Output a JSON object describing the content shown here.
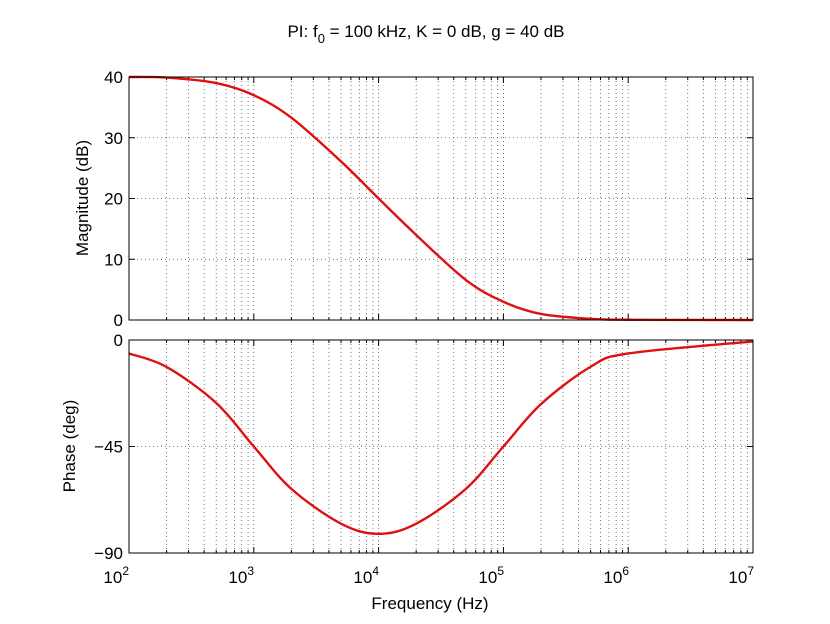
{
  "chart_data": [
    {
      "type": "line",
      "title_prefix": "PI: f",
      "title_subscript": "0",
      "title_suffix": " = 100 kHz, K = 0 dB, g = 40 dB",
      "xlabel": "",
      "ylabel": "Magnitude (dB)",
      "xscale": "log",
      "xlim": [
        100,
        10000000
      ],
      "ylim": [
        0,
        40
      ],
      "yticks": [
        0,
        10,
        20,
        30,
        40
      ],
      "ytick_labels": [
        "0",
        "10",
        "20",
        "30",
        "40"
      ],
      "grid": "dotted",
      "series": [
        {
          "name": "magnitude",
          "color": "#e01010",
          "x": [
            100,
            200,
            500,
            1000,
            2000,
            5000,
            10000,
            20000,
            50000,
            100000,
            200000,
            500000,
            1000000,
            10000000
          ],
          "y": [
            40,
            39.9,
            39.0,
            37.0,
            33.3,
            26.1,
            20.0,
            14.0,
            6.6,
            3.0,
            1.0,
            0.2,
            0.04,
            0
          ]
        }
      ]
    },
    {
      "type": "line",
      "xlabel": "Frequency  (Hz)",
      "ylabel": "Phase (deg)",
      "xscale": "log",
      "xlim": [
        100,
        10000000
      ],
      "ylim": [
        -90,
        0
      ],
      "yticks": [
        0,
        -45,
        -90
      ],
      "ytick_labels": [
        "0",
        "−45",
        "−90"
      ],
      "xtick_base": "10",
      "xtick_exponents": [
        "2",
        "3",
        "4",
        "5",
        "6",
        "7"
      ],
      "grid": "dotted",
      "series": [
        {
          "name": "phase",
          "color": "#e01010",
          "x": [
            100,
            200,
            500,
            1000,
            2000,
            5000,
            10000,
            20000,
            50000,
            100000,
            200000,
            500000,
            1000000,
            10000000
          ],
          "y": [
            -5.7,
            -11.4,
            -26.6,
            -45.0,
            -62.9,
            -77.6,
            -81.9,
            -77.6,
            -62.9,
            -45.0,
            -27.1,
            -11.3,
            -5.7,
            -0.6
          ]
        }
      ]
    }
  ]
}
